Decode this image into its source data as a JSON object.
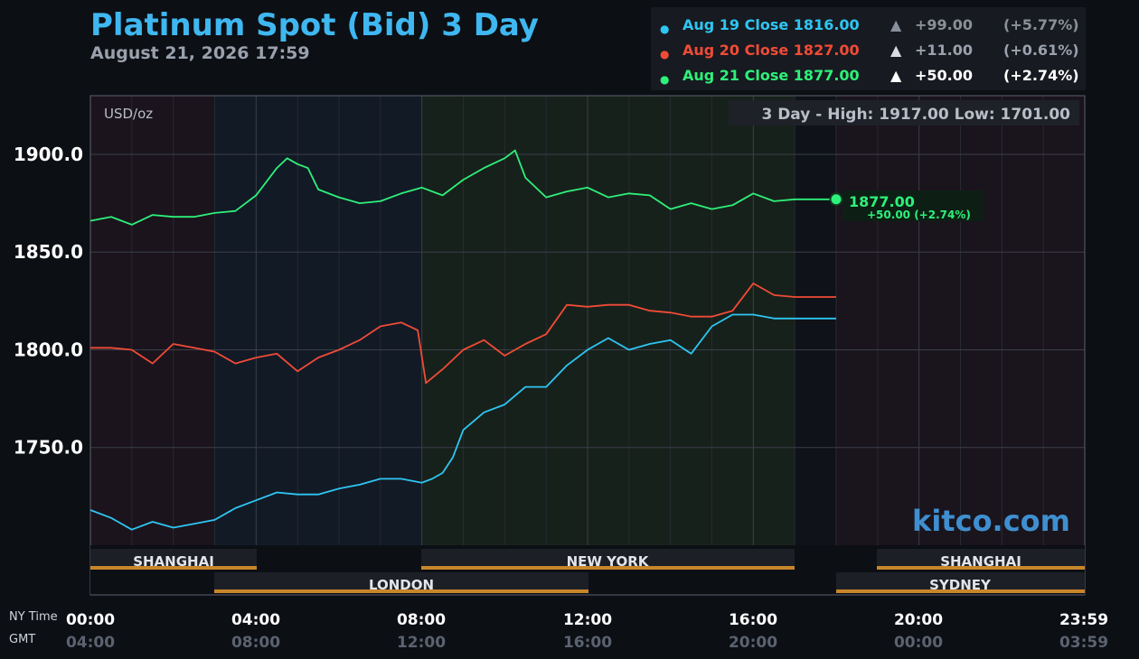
{
  "header": {
    "title": "Platinum Spot (Bid) 3 Day",
    "subtitle": "August 21, 2026 17:59"
  },
  "legend": [
    {
      "label": "Aug 19 Close 1816.00",
      "arrow": "▲",
      "change": "+99.00",
      "pct": "(+5.77%)",
      "color": "#2ec6f2",
      "dim": true
    },
    {
      "label": "Aug 20 Close 1827.00",
      "arrow": "▲",
      "change": "+11.00",
      "pct": "(+0.61%)",
      "color": "#f04b37",
      "dim": true
    },
    {
      "label": "Aug 21 Close 1877.00",
      "arrow": "▲",
      "change": "+50.00",
      "pct": "(+2.74%)",
      "color": "#2ef07a",
      "dim": false
    }
  ],
  "plot": {
    "unit_label": "USD/oz",
    "range_label": "3 Day - High: 1917.00  Low: 1701.00",
    "watermark": "kitco.com",
    "last_price": "1877.00",
    "last_change": "+50.00 (+2.74%)"
  },
  "sessions": {
    "shanghai_1": "SHANGHAI",
    "new_york": "NEW YORK",
    "shanghai_2": "SHANGHAI",
    "london": "LONDON",
    "sydney": "SYDNEY"
  },
  "time_axis": {
    "ny_label": "NY Time",
    "gmt_label": "GMT",
    "ny_ticks": [
      "00:00",
      "04:00",
      "08:00",
      "12:00",
      "16:00",
      "20:00",
      "23:59"
    ],
    "gmt_ticks": [
      "04:00",
      "08:00",
      "12:00",
      "16:00",
      "20:00",
      "00:00",
      "03:59"
    ]
  },
  "colors": {
    "aug19": "#2ec6f2",
    "aug20": "#f04b37",
    "aug21": "#2ef07a",
    "title": "#3fb7f0",
    "session_bar": "#c8862a"
  },
  "chart_data": {
    "type": "line",
    "title": "Platinum Spot (Bid) 3 Day",
    "ylabel": "USD/oz",
    "ylim": [
      1700,
      1930
    ],
    "y_ticks": [
      1750.0,
      1800.0,
      1850.0,
      1900.0
    ],
    "x_unit": "hours (NY time)",
    "xlim": [
      0,
      24
    ],
    "grid": true,
    "series": [
      {
        "name": "Aug 19",
        "close": 1816.0,
        "x": [
          0,
          0.5,
          1,
          1.5,
          2,
          2.5,
          3,
          3.5,
          4,
          4.5,
          5,
          5.5,
          6,
          6.5,
          7,
          7.5,
          8,
          8.25,
          8.5,
          8.75,
          9,
          9.5,
          10,
          10.5,
          11,
          11.5,
          12,
          12.5,
          13,
          13.5,
          14,
          14.5,
          15,
          15.5,
          16,
          16.5,
          17,
          18
        ],
        "y": [
          1718,
          1714,
          1708,
          1712,
          1709,
          1711,
          1713,
          1719,
          1723,
          1727,
          1726,
          1726,
          1729,
          1731,
          1734,
          1734,
          1732,
          1734,
          1737,
          1745,
          1759,
          1768,
          1772,
          1781,
          1781,
          1792,
          1800,
          1806,
          1800,
          1803,
          1805,
          1798,
          1812,
          1818,
          1818,
          1816,
          1816,
          1816
        ]
      },
      {
        "name": "Aug 20",
        "close": 1827.0,
        "x": [
          0,
          0.5,
          1,
          1.5,
          2,
          2.5,
          3,
          3.5,
          4,
          4.5,
          5,
          5.5,
          6,
          6.5,
          7,
          7.5,
          7.9,
          8.1,
          8.5,
          9,
          9.5,
          10,
          10.5,
          11,
          11.5,
          12,
          12.5,
          13,
          13.5,
          14,
          14.5,
          15,
          15.5,
          16,
          16.5,
          17,
          18
        ],
        "y": [
          1801,
          1801,
          1800,
          1793,
          1803,
          1801,
          1799,
          1793,
          1796,
          1798,
          1789,
          1796,
          1800,
          1805,
          1812,
          1814,
          1810,
          1783,
          1790,
          1800,
          1805,
          1797,
          1803,
          1808,
          1823,
          1822,
          1823,
          1823,
          1820,
          1819,
          1817,
          1817,
          1820,
          1834,
          1828,
          1827,
          1827
        ]
      },
      {
        "name": "Aug 21",
        "close": 1877.0,
        "x": [
          0,
          0.5,
          1,
          1.5,
          2,
          2.5,
          3,
          3.5,
          4,
          4.5,
          4.75,
          5,
          5.25,
          5.5,
          6,
          6.5,
          7,
          7.5,
          8,
          8.5,
          9,
          9.5,
          10,
          10.25,
          10.5,
          11,
          11.5,
          12,
          12.5,
          13,
          13.5,
          14,
          14.5,
          15,
          15.5,
          16,
          16.5,
          17,
          18
        ],
        "y": [
          1866,
          1868,
          1864,
          1869,
          1868,
          1868,
          1870,
          1871,
          1879,
          1893,
          1898,
          1895,
          1893,
          1882,
          1878,
          1875,
          1876,
          1880,
          1883,
          1879,
          1887,
          1893,
          1898,
          1902,
          1888,
          1878,
          1881,
          1883,
          1878,
          1880,
          1879,
          1872,
          1875,
          1872,
          1874,
          1880,
          1876,
          1877,
          1877
        ]
      }
    ]
  }
}
